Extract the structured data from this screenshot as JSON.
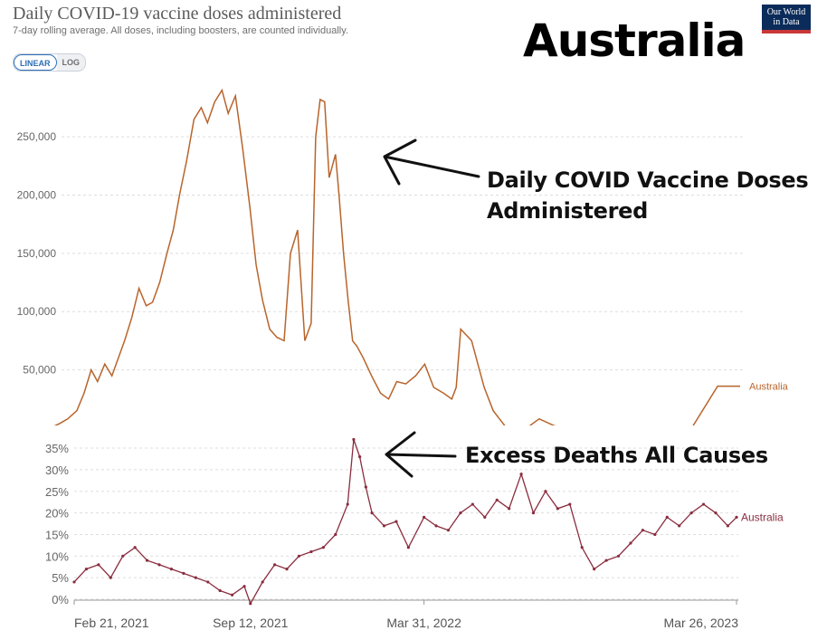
{
  "title": "Daily COVID-19 vaccine doses administered",
  "subtitle": "7-day rolling average. All doses, including boosters, are counted individually.",
  "scale_toggle": {
    "linear": "LINEAR",
    "log": "LOG"
  },
  "logo": {
    "line1": "Our World",
    "line2": "in Data"
  },
  "country_title": "Australia",
  "annotations": {
    "vaccine": "Daily COVID Vaccine Doses Administered",
    "deaths": "Excess Deaths All Causes"
  },
  "colors": {
    "vaccine": "#b8642b",
    "deaths": "#8a2d3f",
    "grid": "#dddddd",
    "tick": "#666666"
  },
  "chart_data": [
    {
      "type": "line",
      "title": "Daily COVID-19 vaccine doses administered",
      "xlabel": "",
      "ylabel": "",
      "ylim": [
        0,
        290000
      ],
      "y_ticks": [
        "50,000",
        "100,000",
        "150,000",
        "200,000",
        "250,000"
      ],
      "y_tick_values": [
        50000,
        100000,
        150000,
        200000,
        250000
      ],
      "grid": true,
      "series": [
        {
          "name": "Australia",
          "x": [
            "2021-02-21",
            "2021-03-01",
            "2021-03-10",
            "2021-03-20",
            "2021-03-28",
            "2021-04-05",
            "2021-04-12",
            "2021-04-20",
            "2021-04-28",
            "2021-05-05",
            "2021-05-12",
            "2021-05-20",
            "2021-05-28",
            "2021-06-05",
            "2021-06-12",
            "2021-06-20",
            "2021-06-28",
            "2021-07-05",
            "2021-07-12",
            "2021-07-20",
            "2021-07-28",
            "2021-08-05",
            "2021-08-12",
            "2021-08-20",
            "2021-08-28",
            "2021-09-04",
            "2021-09-12",
            "2021-09-20",
            "2021-09-28",
            "2021-10-05",
            "2021-10-12",
            "2021-10-20",
            "2021-10-28",
            "2021-11-05",
            "2021-11-12",
            "2021-11-20",
            "2021-11-28",
            "2021-12-05",
            "2021-12-10",
            "2021-12-15",
            "2021-12-20",
            "2021-12-25",
            "2022-01-01",
            "2022-01-05",
            "2022-01-10",
            "2022-01-15",
            "2022-01-20",
            "2022-01-25",
            "2022-02-01",
            "2022-02-10",
            "2022-02-20",
            "2022-03-01",
            "2022-03-10",
            "2022-03-20",
            "2022-03-31",
            "2022-04-10",
            "2022-04-20",
            "2022-05-01",
            "2022-05-10",
            "2022-05-15",
            "2022-05-20",
            "2022-06-01",
            "2022-06-15",
            "2022-06-25",
            "2022-07-05",
            "2022-07-10",
            "2022-07-20",
            "2022-08-01",
            "2022-08-15",
            "2022-09-01",
            "2022-09-15",
            "2022-10-01",
            "2022-11-01",
            "2022-12-01",
            "2022-12-15",
            "2023-01-01",
            "2023-02-01",
            "2023-03-01",
            "2023-03-10",
            "2023-03-26"
          ],
          "values": [
            1000,
            4000,
            8000,
            15000,
            30000,
            50000,
            40000,
            55000,
            45000,
            60000,
            75000,
            95000,
            120000,
            105000,
            108000,
            125000,
            150000,
            170000,
            200000,
            230000,
            265000,
            275000,
            262000,
            280000,
            290000,
            270000,
            285000,
            240000,
            190000,
            140000,
            110000,
            85000,
            78000,
            75000,
            150000,
            170000,
            75000,
            90000,
            250000,
            282000,
            280000,
            215000,
            235000,
            200000,
            150000,
            110000,
            75000,
            70000,
            60000,
            45000,
            30000,
            25000,
            40000,
            38000,
            45000,
            55000,
            35000,
            30000,
            25000,
            35000,
            85000,
            75000,
            35000,
            15000,
            5000,
            0,
            0,
            0,
            8000,
            2000,
            0,
            0,
            0,
            0,
            0,
            0,
            1000,
            36000,
            36000,
            36000
          ]
        }
      ]
    },
    {
      "type": "line",
      "title": "",
      "xlabel": "",
      "ylabel": "",
      "ylim": [
        -0.5,
        37
      ],
      "y_ticks": [
        "0%",
        "5%",
        "10%",
        "15%",
        "20%",
        "25%",
        "30%",
        "35%"
      ],
      "y_tick_values": [
        0,
        5,
        10,
        15,
        20,
        25,
        30,
        35
      ],
      "x_ticks": [
        "Feb 21, 2021",
        "Sep 12, 2021",
        "Mar 31, 2022",
        "Mar 26, 2023"
      ],
      "grid": true,
      "series": [
        {
          "name": "Australia",
          "x": [
            "2021-02-21",
            "2021-03-07",
            "2021-03-21",
            "2021-04-04",
            "2021-04-18",
            "2021-05-02",
            "2021-05-16",
            "2021-05-30",
            "2021-06-13",
            "2021-06-27",
            "2021-07-11",
            "2021-07-25",
            "2021-08-08",
            "2021-08-22",
            "2021-09-05",
            "2021-09-12",
            "2021-09-26",
            "2021-10-10",
            "2021-10-24",
            "2021-11-07",
            "2021-11-21",
            "2021-12-05",
            "2021-12-19",
            "2022-01-02",
            "2022-01-09",
            "2022-01-16",
            "2022-01-23",
            "2022-01-30",
            "2022-02-13",
            "2022-02-27",
            "2022-03-13",
            "2022-03-31",
            "2022-04-14",
            "2022-04-28",
            "2022-05-12",
            "2022-05-26",
            "2022-06-09",
            "2022-06-23",
            "2022-07-07",
            "2022-07-21",
            "2022-08-04",
            "2022-08-18",
            "2022-09-01",
            "2022-09-15",
            "2022-09-29",
            "2022-10-13",
            "2022-10-27",
            "2022-11-10",
            "2022-11-24",
            "2022-12-08",
            "2022-12-22",
            "2023-01-05",
            "2023-01-19",
            "2023-02-02",
            "2023-02-16",
            "2023-03-02",
            "2023-03-16",
            "2023-03-26"
          ],
          "values": [
            4,
            7,
            8,
            5,
            10,
            12,
            9,
            8,
            7,
            6,
            5,
            4,
            2,
            1,
            3,
            -1,
            4,
            8,
            7,
            10,
            11,
            12,
            15,
            22,
            37,
            33,
            26,
            20,
            17,
            18,
            12,
            19,
            17,
            16,
            20,
            22,
            19,
            23,
            21,
            29,
            20,
            25,
            21,
            22,
            12,
            7,
            9,
            10,
            13,
            16,
            15,
            19,
            17,
            20,
            22,
            20,
            17,
            19
          ]
        }
      ]
    }
  ]
}
